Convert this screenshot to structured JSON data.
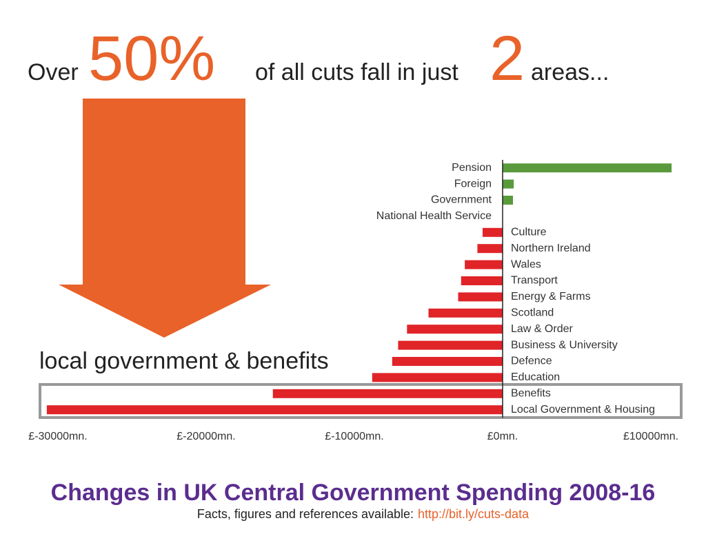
{
  "chart_data": {
    "type": "bar",
    "orientation": "horizontal",
    "headline": {
      "lead": "Over",
      "percent": "50%",
      "middle": "of all cuts fall in just",
      "count": "2",
      "tail": "areas..."
    },
    "annotation": "local government & benefits",
    "title": "Changes in UK Central Government Spending 2008-16",
    "footnote": "Facts, figures and references available:",
    "link": "http://bit.ly/cuts-data",
    "categories": [
      "Pension",
      "Foreign",
      "Government",
      "National Health Service",
      "Culture",
      "Northern Ireland",
      "Wales",
      "Transport",
      "Energy & Farms",
      "Scotland",
      "Law & Order",
      "Business & University",
      "Defence",
      "Education",
      "Benefits",
      "Local Government & Housing"
    ],
    "values": [
      11400,
      750,
      700,
      0,
      -1350,
      -1700,
      -2550,
      -2800,
      -3000,
      -5000,
      -6450,
      -7050,
      -7450,
      -8800,
      -15500,
      -30750
    ],
    "positive_color": "#5b9a3c",
    "negative_color": "#e02428",
    "xlim": [
      -30000,
      10000
    ],
    "xticks": [
      {
        "value": -30000,
        "label": "£-30000mn."
      },
      {
        "value": -20000,
        "label": "£-20000mn."
      },
      {
        "value": -10000,
        "label": "£-10000mn."
      },
      {
        "value": 0,
        "label": "£0mn."
      },
      {
        "value": 10000,
        "label": "£10000mn."
      }
    ]
  }
}
